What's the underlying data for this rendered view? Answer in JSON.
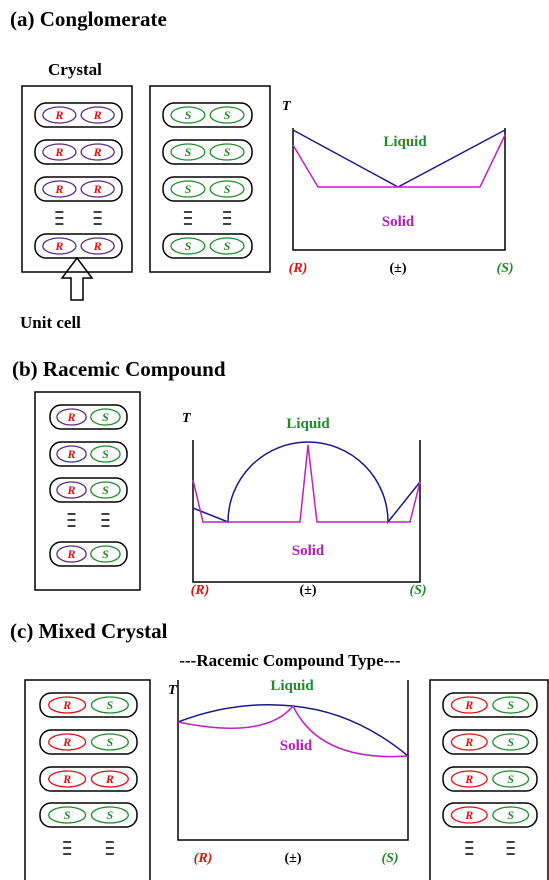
{
  "a": {
    "title": "(a) Conglomerate",
    "crystal_label": "Crystal",
    "unit_cell_label": "Unit cell",
    "crystals": [
      [
        [
          "R",
          "R"
        ],
        [
          "R",
          "R"
        ],
        [
          "R",
          "R"
        ],
        [
          "R",
          "R"
        ]
      ],
      [
        [
          "S",
          "S"
        ],
        [
          "S",
          "S"
        ],
        [
          "S",
          "S"
        ],
        [
          "S",
          "S"
        ]
      ]
    ],
    "phase": {
      "axis": "T",
      "liquid": "Liquid",
      "solid": "Solid",
      "left": "(R)",
      "middle": "(±)",
      "right": "(S)"
    }
  },
  "b": {
    "title": "(b) Racemic Compound",
    "crystals": [
      [
        [
          "R",
          "S"
        ],
        [
          "R",
          "S"
        ],
        [
          "R",
          "S"
        ],
        [
          "R",
          "S"
        ]
      ]
    ],
    "phase": {
      "axis": "T",
      "liquid": "Liquid",
      "solid": "Solid",
      "left": "(R)",
      "middle": "(±)",
      "right": "(S)"
    }
  },
  "c": {
    "title": "(c) Mixed Crystal",
    "subtitle": "---Racemic Compound Type---",
    "crystals": [
      [
        [
          "R",
          "S"
        ],
        [
          "R",
          "S"
        ],
        [
          "R",
          "R"
        ],
        [
          "S",
          "S"
        ]
      ],
      [
        [
          "R",
          "S"
        ],
        [
          "R",
          "S"
        ],
        [
          "R",
          "S"
        ],
        [
          "R",
          "S"
        ]
      ]
    ],
    "phase": {
      "axis": "T",
      "liquid": "Liquid",
      "solid": "Solid",
      "left": "(R)",
      "middle": "(±)",
      "right": "(S)"
    }
  }
}
